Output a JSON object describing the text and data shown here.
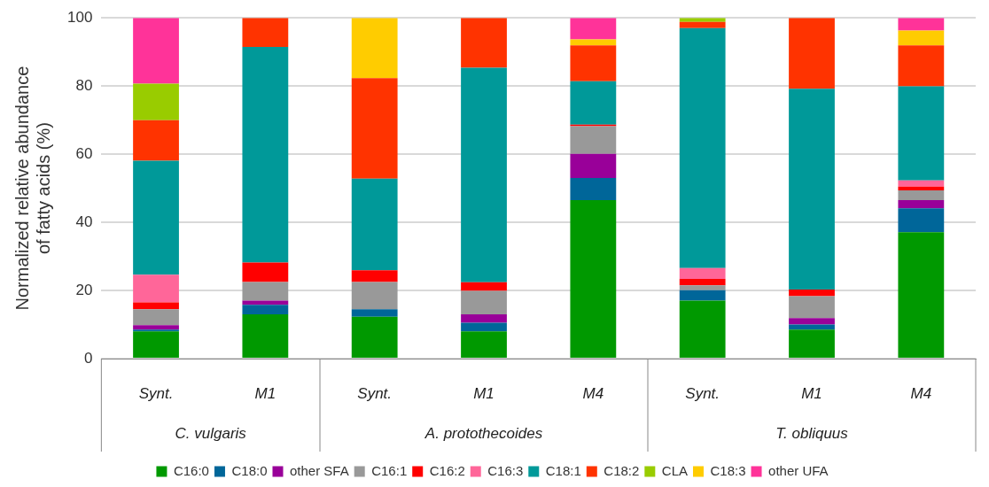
{
  "chart_data": {
    "type": "bar",
    "stacked": true,
    "ylabel": "Normalized relative abundance of fatty acids (%)",
    "categories": [
      "Synt.",
      "M1",
      "Synt.",
      "M1",
      "M4",
      "Synt.",
      "M1",
      "M4"
    ],
    "annotations": [
      "C. vulgaris",
      "A. protothecoides",
      "T. obliquus"
    ],
    "ylim": [
      0,
      100
    ],
    "yticks": [
      0,
      20,
      40,
      60,
      80,
      100
    ],
    "grid": "y",
    "legend": "bottom",
    "series": [
      {
        "name": "C16:0",
        "color": "#009900",
        "values": [
          8.0,
          13.0,
          12.3,
          8.0,
          46.5,
          17.0,
          8.5,
          37.1
        ]
      },
      {
        "name": "C18:0",
        "color": "#006699",
        "values": [
          0.5,
          2.8,
          2.2,
          2.5,
          6.5,
          3.1,
          1.5,
          7.0
        ]
      },
      {
        "name": "other SFA",
        "color": "#990099",
        "values": [
          1.3,
          1.2,
          0,
          2.5,
          7.1,
          0,
          1.9,
          2.4
        ]
      },
      {
        "name": "C16:1",
        "color": "#999999",
        "values": [
          4.7,
          5.5,
          8.0,
          6.9,
          8.1,
          1.4,
          6.4,
          2.9
        ]
      },
      {
        "name": "C16:2",
        "color": "#ff0000",
        "values": [
          2.0,
          5.7,
          3.4,
          2.5,
          0.5,
          1.9,
          2.0,
          1.1
        ]
      },
      {
        "name": "C16:3",
        "color": "#ff6699",
        "values": [
          8.1,
          0,
          0,
          0,
          0,
          3.2,
          0,
          1.8
        ]
      },
      {
        "name": "C18:1",
        "color": "#009999",
        "values": [
          33.5,
          63.3,
          26.9,
          63.0,
          12.7,
          70.4,
          58.9,
          27.6
        ]
      },
      {
        "name": "C18:2",
        "color": "#ff3300",
        "values": [
          11.9,
          8.5,
          29.5,
          14.6,
          10.5,
          1.8,
          20.8,
          12.0
        ]
      },
      {
        "name": "CLA",
        "color": "#99cc00",
        "values": [
          10.7,
          0,
          0,
          0,
          0,
          1.2,
          0,
          0
        ]
      },
      {
        "name": "C18:3",
        "color": "#ffcc00",
        "values": [
          0,
          0,
          17.7,
          0,
          1.8,
          0,
          0,
          4.4
        ]
      },
      {
        "name": "other UFA",
        "color": "#ff3399",
        "values": [
          19.3,
          0,
          0,
          0,
          6.3,
          0,
          0,
          3.7
        ]
      }
    ]
  }
}
